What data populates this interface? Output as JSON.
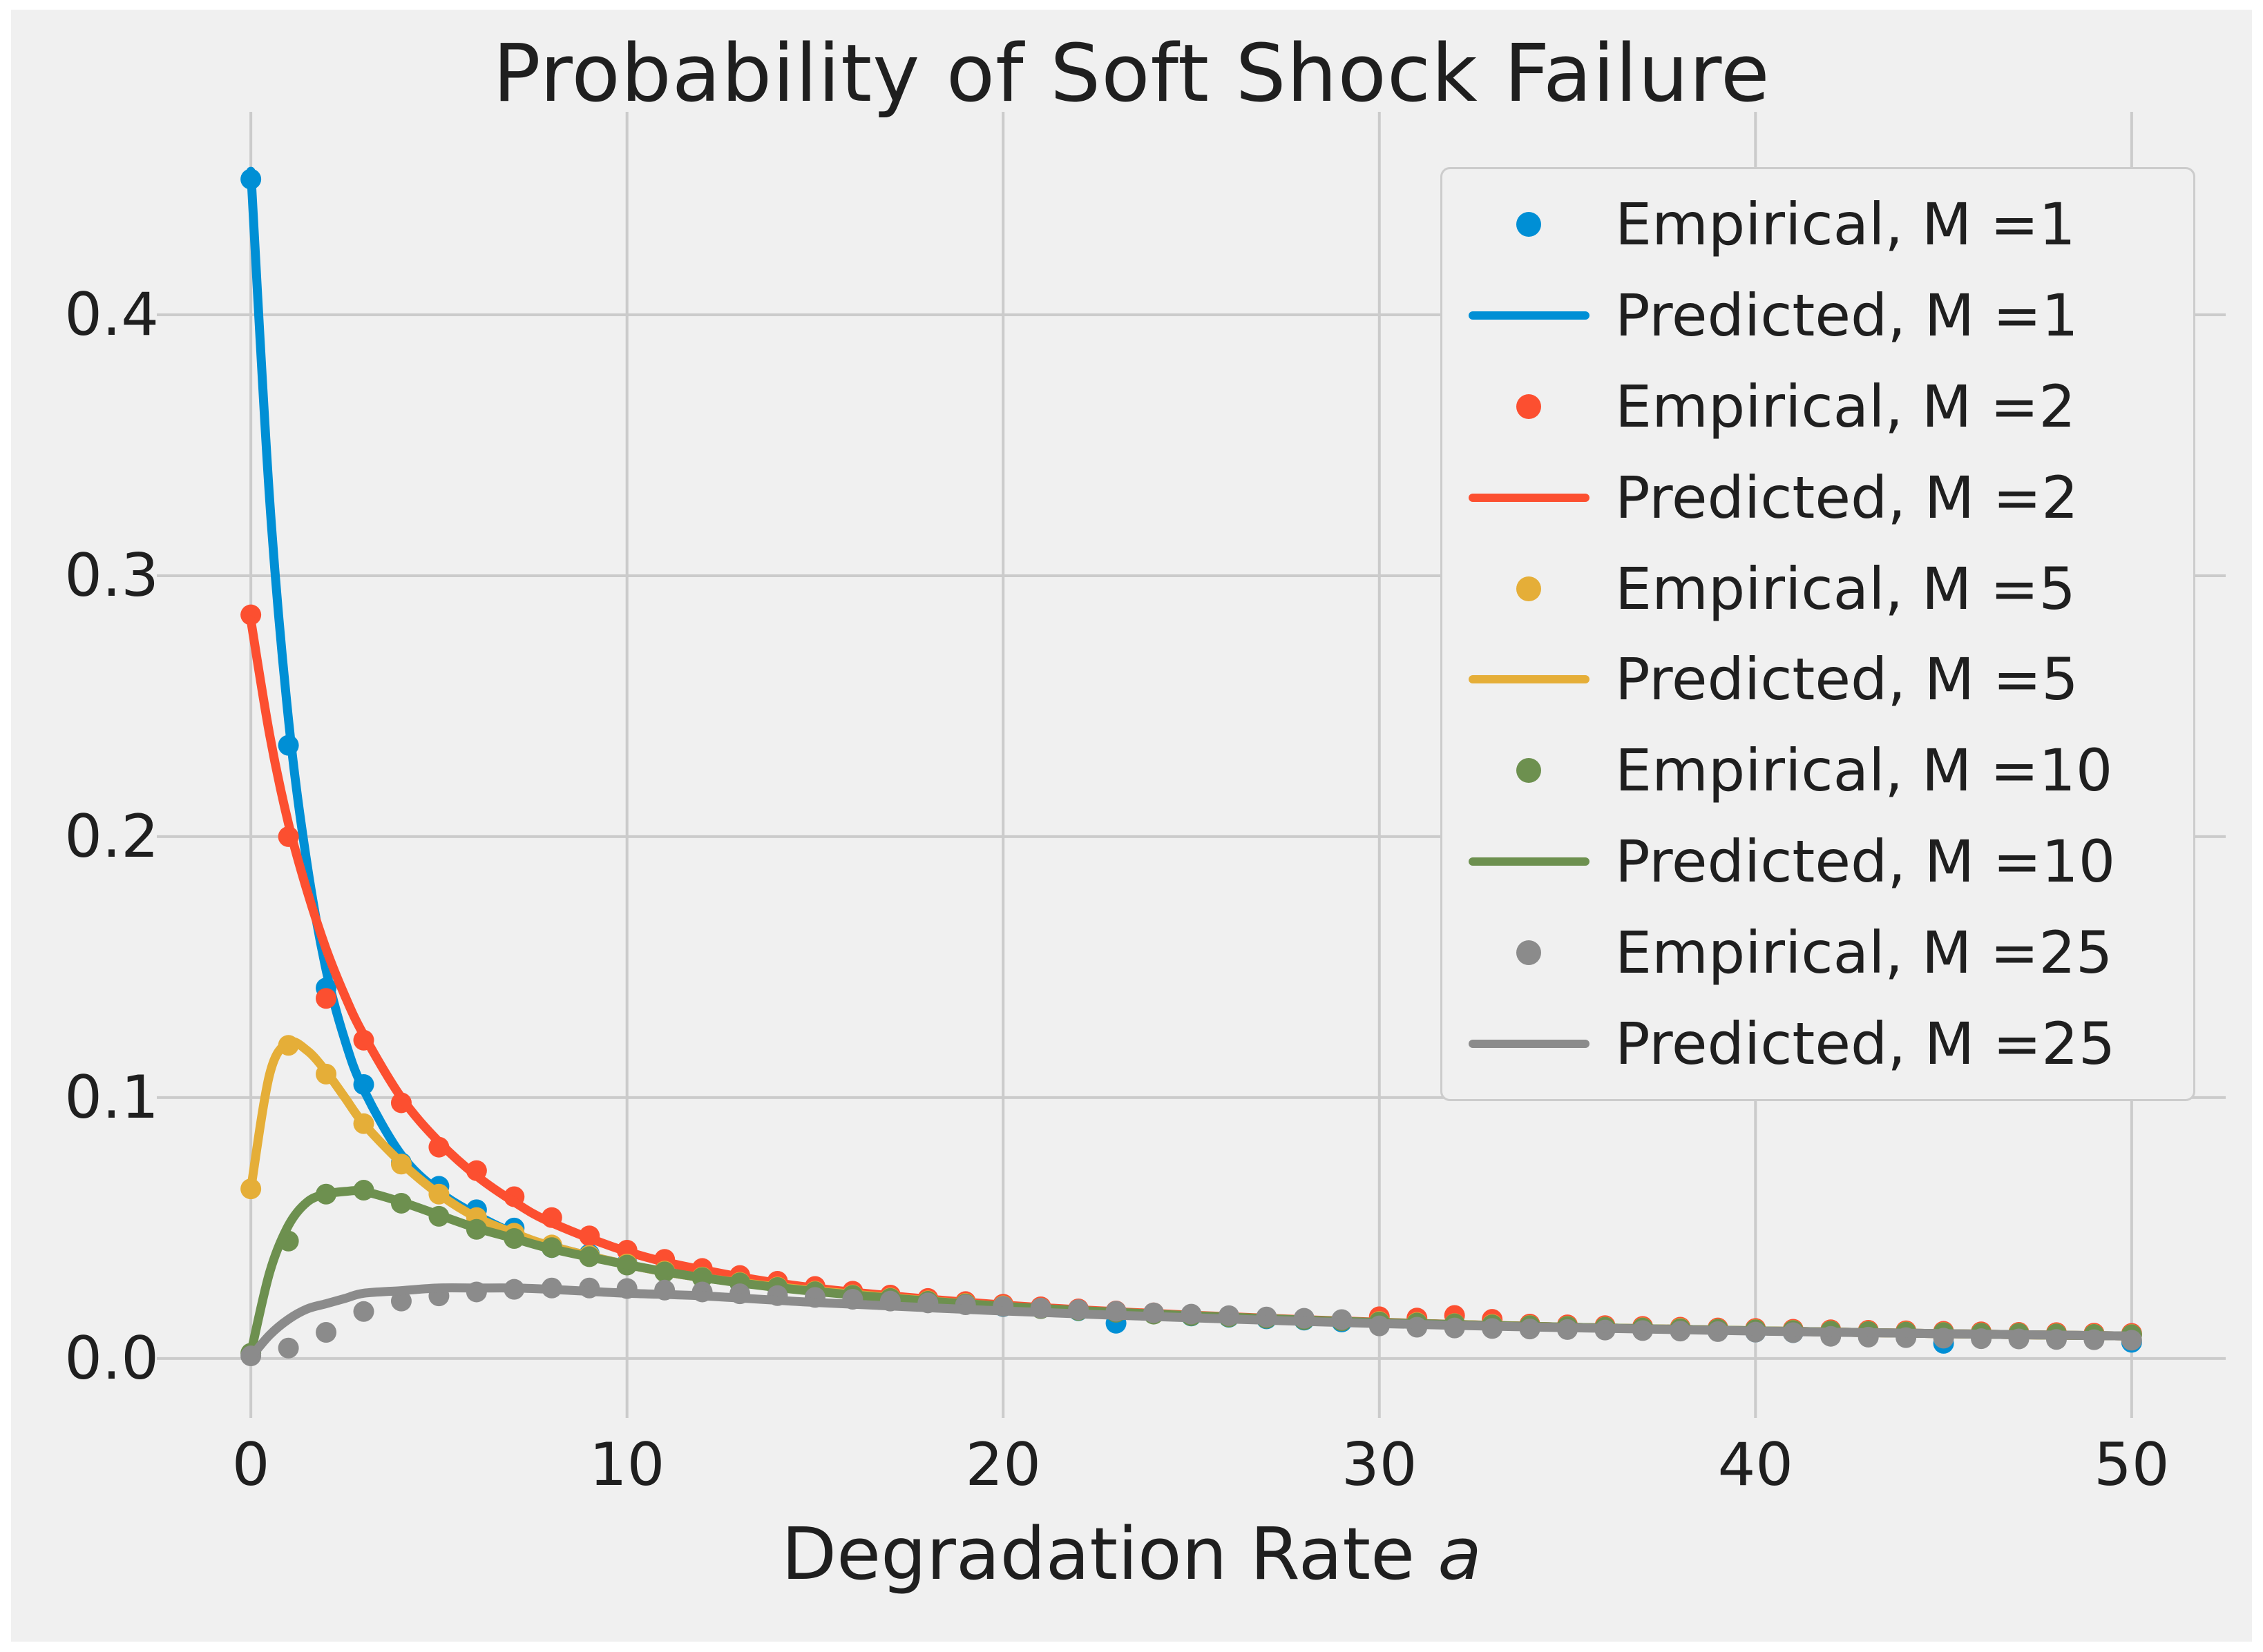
{
  "figure": {
    "title": "Probability of Soft Shock Failure",
    "xlabel_main": "Degradation Rate ",
    "xlabel_var": "a"
  },
  "colors": {
    "background": "#f0f0f0",
    "page": "#ffffff",
    "grid": "#cbcbcb",
    "text": "#1f1f1f",
    "blue": "#008fd5",
    "red": "#fc4f30",
    "yellow": "#e5ae38",
    "green": "#6d904f",
    "gray": "#8b8b8b"
  },
  "legend": {
    "entries": [
      {
        "label": "Empirical, M =1",
        "marker": "dot",
        "color": "blue"
      },
      {
        "label": "Predicted, M =1",
        "marker": "line",
        "color": "blue"
      },
      {
        "label": "Empirical, M =2",
        "marker": "dot",
        "color": "red"
      },
      {
        "label": "Predicted, M =2",
        "marker": "line",
        "color": "red"
      },
      {
        "label": "Empirical, M =5",
        "marker": "dot",
        "color": "yellow"
      },
      {
        "label": "Predicted, M =5",
        "marker": "line",
        "color": "yellow"
      },
      {
        "label": "Empirical, M =10",
        "marker": "dot",
        "color": "green"
      },
      {
        "label": "Predicted, M =10",
        "marker": "line",
        "color": "green"
      },
      {
        "label": "Empirical, M =25",
        "marker": "dot",
        "color": "gray"
      },
      {
        "label": "Predicted, M =25",
        "marker": "line",
        "color": "gray"
      }
    ]
  },
  "chart_data": {
    "type": "line+scatter",
    "title": "Probability of Soft Shock Failure",
    "xlabel": "Degradation Rate a",
    "ylabel": "",
    "xlim": [
      -2.5,
      52.5
    ],
    "ylim": [
      -0.0228,
      0.4778
    ],
    "grid": true,
    "legend_position": "upper right",
    "x_ticks": [
      {
        "v": 0,
        "label": "0"
      },
      {
        "v": 10,
        "label": "10"
      },
      {
        "v": 20,
        "label": "20"
      },
      {
        "v": 30,
        "label": "30"
      },
      {
        "v": 40,
        "label": "40"
      },
      {
        "v": 50,
        "label": "50"
      }
    ],
    "y_ticks": [
      {
        "v": 0.0,
        "label": "0.0"
      },
      {
        "v": 0.1,
        "label": "0.1"
      },
      {
        "v": 0.2,
        "label": "0.2"
      },
      {
        "v": 0.3,
        "label": "0.3"
      },
      {
        "v": 0.4,
        "label": "0.4"
      }
    ],
    "predicted_x": [
      0,
      0.5,
      1,
      1.5,
      2,
      2.5,
      3,
      4,
      5,
      6,
      7,
      8,
      10,
      12,
      15,
      20,
      25,
      30,
      35,
      40,
      45,
      50
    ],
    "empirical_x": [
      0,
      1,
      2,
      3,
      4,
      5,
      6,
      7,
      8,
      9,
      10,
      11,
      12,
      13,
      14,
      15,
      16,
      17,
      18,
      19,
      20,
      21,
      22,
      23,
      24,
      25,
      26,
      27,
      28,
      29,
      30,
      31,
      32,
      33,
      34,
      35,
      36,
      37,
      38,
      39,
      40,
      41,
      42,
      43,
      44,
      45,
      46,
      47,
      48,
      49,
      50
    ],
    "series": [
      {
        "name": "Predicted, M =1",
        "kind": "line",
        "color": "blue",
        "y": [
          0.455,
          0.329,
          0.245,
          0.189,
          0.149,
          0.122,
          0.103,
          0.078,
          0.064,
          0.055,
          0.048,
          0.043,
          0.036,
          0.031,
          0.026,
          0.02,
          0.0165,
          0.0138,
          0.012,
          0.0106,
          0.0095,
          0.0086
        ]
      },
      {
        "name": "Predicted, M =2",
        "kind": "line",
        "color": "red",
        "y": [
          0.283,
          0.239,
          0.205,
          0.179,
          0.157,
          0.139,
          0.124,
          0.1,
          0.083,
          0.07,
          0.06,
          0.052,
          0.041,
          0.034,
          0.027,
          0.0205,
          0.0166,
          0.0139,
          0.012,
          0.0106,
          0.0095,
          0.0086
        ]
      },
      {
        "name": "Predicted, M =5",
        "kind": "line",
        "color": "yellow",
        "y": [
          0.065,
          0.109,
          0.121,
          0.118,
          0.11,
          0.1,
          0.09,
          0.075,
          0.063,
          0.054,
          0.048,
          0.043,
          0.036,
          0.031,
          0.026,
          0.02,
          0.0164,
          0.0138,
          0.012,
          0.0106,
          0.0095,
          0.0086
        ]
      },
      {
        "name": "Predicted, M =10",
        "kind": "line",
        "color": "green",
        "y": [
          0.002,
          0.033,
          0.051,
          0.06,
          0.063,
          0.064,
          0.064,
          0.06,
          0.055,
          0.05,
          0.046,
          0.042,
          0.036,
          0.031,
          0.0257,
          0.02,
          0.0164,
          0.0138,
          0.012,
          0.0106,
          0.0095,
          0.0086
        ]
      },
      {
        "name": "Predicted, M =25",
        "kind": "line",
        "color": "gray",
        "y": [
          0.0005,
          0.009,
          0.015,
          0.019,
          0.021,
          0.023,
          0.025,
          0.026,
          0.027,
          0.027,
          0.027,
          0.0265,
          0.025,
          0.024,
          0.0215,
          0.0182,
          0.0156,
          0.0134,
          0.0118,
          0.0105,
          0.0095,
          0.0086
        ]
      },
      {
        "name": "Empirical, M =1",
        "kind": "scatter",
        "color": "blue",
        "y": [
          0.452,
          0.235,
          0.142,
          0.105,
          0.075,
          0.066,
          0.057,
          0.05,
          0.0425,
          0.04,
          0.0365,
          0.0335,
          0.0312,
          0.029,
          0.0272,
          0.0258,
          0.0243,
          0.0231,
          0.0223,
          0.021,
          0.0199,
          0.0192,
          0.0183,
          0.0135,
          0.0172,
          0.0163,
          0.0158,
          0.0152,
          0.0147,
          0.014,
          0.0135,
          0.0131,
          0.0128,
          0.0124,
          0.012,
          0.0117,
          0.0113,
          0.011,
          0.0107,
          0.0104,
          0.0101,
          0.0099,
          0.0096,
          0.0094,
          0.0092,
          0.0058,
          0.0088,
          0.0086,
          0.0084,
          0.0083,
          0.0062
        ]
      },
      {
        "name": "Empirical, M =2",
        "kind": "scatter",
        "color": "red",
        "y": [
          0.285,
          0.2,
          0.138,
          0.122,
          0.098,
          0.081,
          0.072,
          0.062,
          0.054,
          0.047,
          0.0415,
          0.038,
          0.0345,
          0.0318,
          0.0296,
          0.0276,
          0.0258,
          0.0243,
          0.023,
          0.0218,
          0.0208,
          0.0198,
          0.019,
          0.0182,
          0.0175,
          0.0168,
          0.0162,
          0.0157,
          0.0152,
          0.0147,
          0.016,
          0.0155,
          0.0165,
          0.015,
          0.0132,
          0.0129,
          0.0126,
          0.0123,
          0.012,
          0.0117,
          0.0115,
          0.0112,
          0.011,
          0.0108,
          0.0106,
          0.0104,
          0.0102,
          0.01,
          0.0099,
          0.0097,
          0.0096
        ]
      },
      {
        "name": "Empirical, M =5",
        "kind": "scatter",
        "color": "yellow",
        "y": [
          0.065,
          0.12,
          0.109,
          0.09,
          0.0745,
          0.063,
          0.054,
          0.048,
          0.0435,
          0.0395,
          0.0362,
          0.0335,
          0.0312,
          0.0292,
          0.0274,
          0.0258,
          0.0244,
          0.0232,
          0.0221,
          0.0211,
          0.0202,
          0.0193,
          0.0186,
          0.0179,
          0.0172,
          0.0166,
          0.0161,
          0.0156,
          0.0151,
          0.0146,
          0.0142,
          0.0138,
          0.0134,
          0.0131,
          0.0127,
          0.0124,
          0.0121,
          0.0118,
          0.0116,
          0.0113,
          0.0111,
          0.0108,
          0.0106,
          0.0104,
          0.0102,
          0.01,
          0.0098,
          0.0097,
          0.0095,
          0.0093,
          0.0092
        ]
      },
      {
        "name": "Empirical, M =10",
        "kind": "scatter",
        "color": "green",
        "y": [
          0.002,
          0.045,
          0.063,
          0.0645,
          0.0595,
          0.0545,
          0.0495,
          0.046,
          0.0425,
          0.039,
          0.0358,
          0.0332,
          0.031,
          0.029,
          0.0272,
          0.0256,
          0.0242,
          0.023,
          0.0219,
          0.0209,
          0.02,
          0.0191,
          0.0184,
          0.0177,
          0.017,
          0.0164,
          0.0159,
          0.0154,
          0.0149,
          0.0144,
          0.014,
          0.0136,
          0.0133,
          0.0129,
          0.0126,
          0.0123,
          0.012,
          0.0117,
          0.0114,
          0.0112,
          0.011,
          0.0107,
          0.0105,
          0.0103,
          0.0101,
          0.0099,
          0.0097,
          0.0096,
          0.0094,
          0.0092,
          0.0091
        ]
      },
      {
        "name": "Empirical, M =25",
        "kind": "scatter",
        "color": "gray",
        "y": [
          0.001,
          0.004,
          0.01,
          0.018,
          0.022,
          0.024,
          0.0255,
          0.0265,
          0.027,
          0.027,
          0.0268,
          0.0262,
          0.0255,
          0.0248,
          0.0241,
          0.0234,
          0.0227,
          0.022,
          0.0213,
          0.0206,
          0.02,
          0.0193,
          0.0187,
          0.0181,
          0.0175,
          0.017,
          0.0164,
          0.0159,
          0.0154,
          0.0149,
          0.0125,
          0.012,
          0.0117,
          0.0115,
          0.0113,
          0.0111,
          0.0109,
          0.0107,
          0.0105,
          0.0103,
          0.0101,
          0.0099,
          0.0085,
          0.0082,
          0.008,
          0.0078,
          0.0076,
          0.0075,
          0.0073,
          0.0072,
          0.007
        ]
      }
    ]
  }
}
